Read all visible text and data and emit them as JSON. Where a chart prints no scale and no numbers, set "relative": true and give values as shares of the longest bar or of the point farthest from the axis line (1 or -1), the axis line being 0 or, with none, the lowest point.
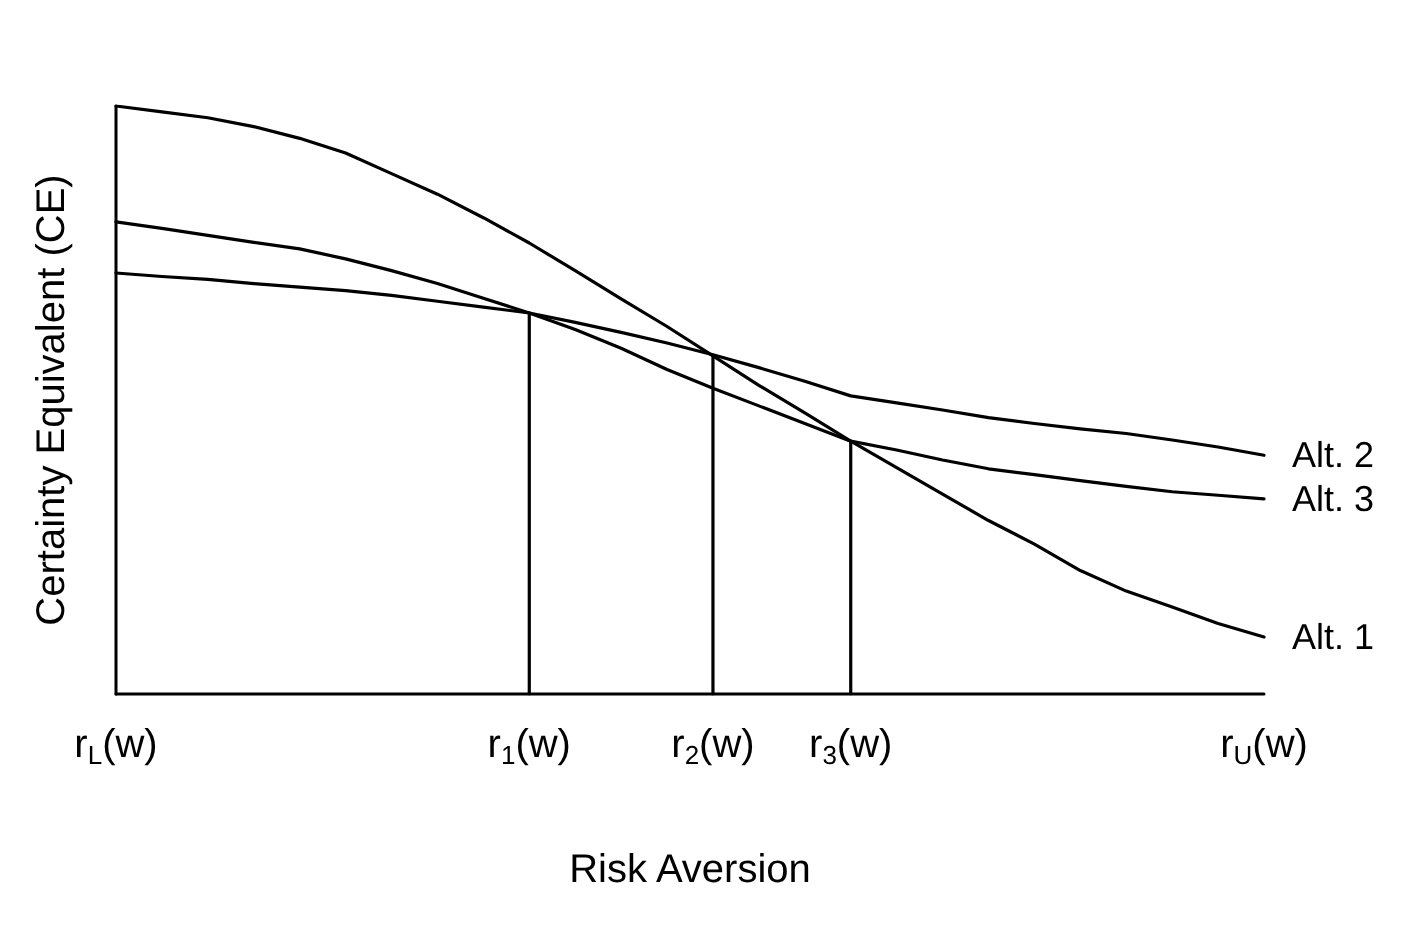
{
  "chart_data": {
    "type": "line",
    "relative": true,
    "xlabel": "Risk Aversion",
    "ylabel": "Certainty Equivalent (CE)",
    "categories": [
      "r$_{L}$(w)",
      null,
      null,
      null,
      null,
      null,
      null,
      null,
      null,
      "r$_{1}$(w)",
      null,
      null,
      null,
      "r$_{2}$(w)",
      null,
      null,
      "r$_{3}$(w)",
      null,
      null,
      null,
      null,
      null,
      null,
      null,
      null,
      "r$_{U}$(w)"
    ],
    "grid": false,
    "legend": false,
    "marker": "none",
    "line_style": "solid",
    "series": [
      {
        "name": "Alt. 1",
        "color": "#000000",
        "values": [
          1.0,
          0.99,
          0.98,
          0.965,
          0.945,
          0.92,
          0.885,
          0.85,
          0.81,
          0.767,
          0.72,
          0.672,
          0.625,
          0.575,
          0.525,
          0.478,
          0.43,
          0.385,
          0.34,
          0.295,
          0.255,
          0.21,
          0.175,
          0.148,
          0.12,
          0.097
        ]
      },
      {
        "name": "Alt. 2",
        "color": "#000000",
        "values": [
          0.716,
          0.71,
          0.705,
          0.698,
          0.692,
          0.686,
          0.678,
          0.668,
          0.658,
          0.648,
          0.632,
          0.615,
          0.597,
          0.577,
          0.555,
          0.532,
          0.507,
          0.495,
          0.483,
          0.47,
          0.46,
          0.451,
          0.443,
          0.432,
          0.42,
          0.406
        ]
      },
      {
        "name": "Alt. 3",
        "color": "#000000",
        "values": [
          0.803,
          0.792,
          0.78,
          0.768,
          0.757,
          0.74,
          0.72,
          0.698,
          0.673,
          0.648,
          0.62,
          0.588,
          0.552,
          0.52,
          0.49,
          0.46,
          0.43,
          0.415,
          0.398,
          0.383,
          0.373,
          0.363,
          0.353,
          0.344,
          0.338,
          0.332
        ]
      },
      {
        "color": "#000000",
        "x": [
          "r$_{1}$(w)",
          "r$_{1}$(w)"
        ],
        "values": [
          0,
          0.648
        ]
      },
      {
        "color": "#000000",
        "x": [
          "r$_{2}$(w)",
          "r$_{2}$(w)"
        ],
        "values": [
          0,
          0.576
        ]
      },
      {
        "color": "#000000",
        "x": [
          "r$_{3}$(w)",
          "r$_{3}$(w)"
        ],
        "values": [
          0,
          0.43
        ]
      }
    ]
  }
}
